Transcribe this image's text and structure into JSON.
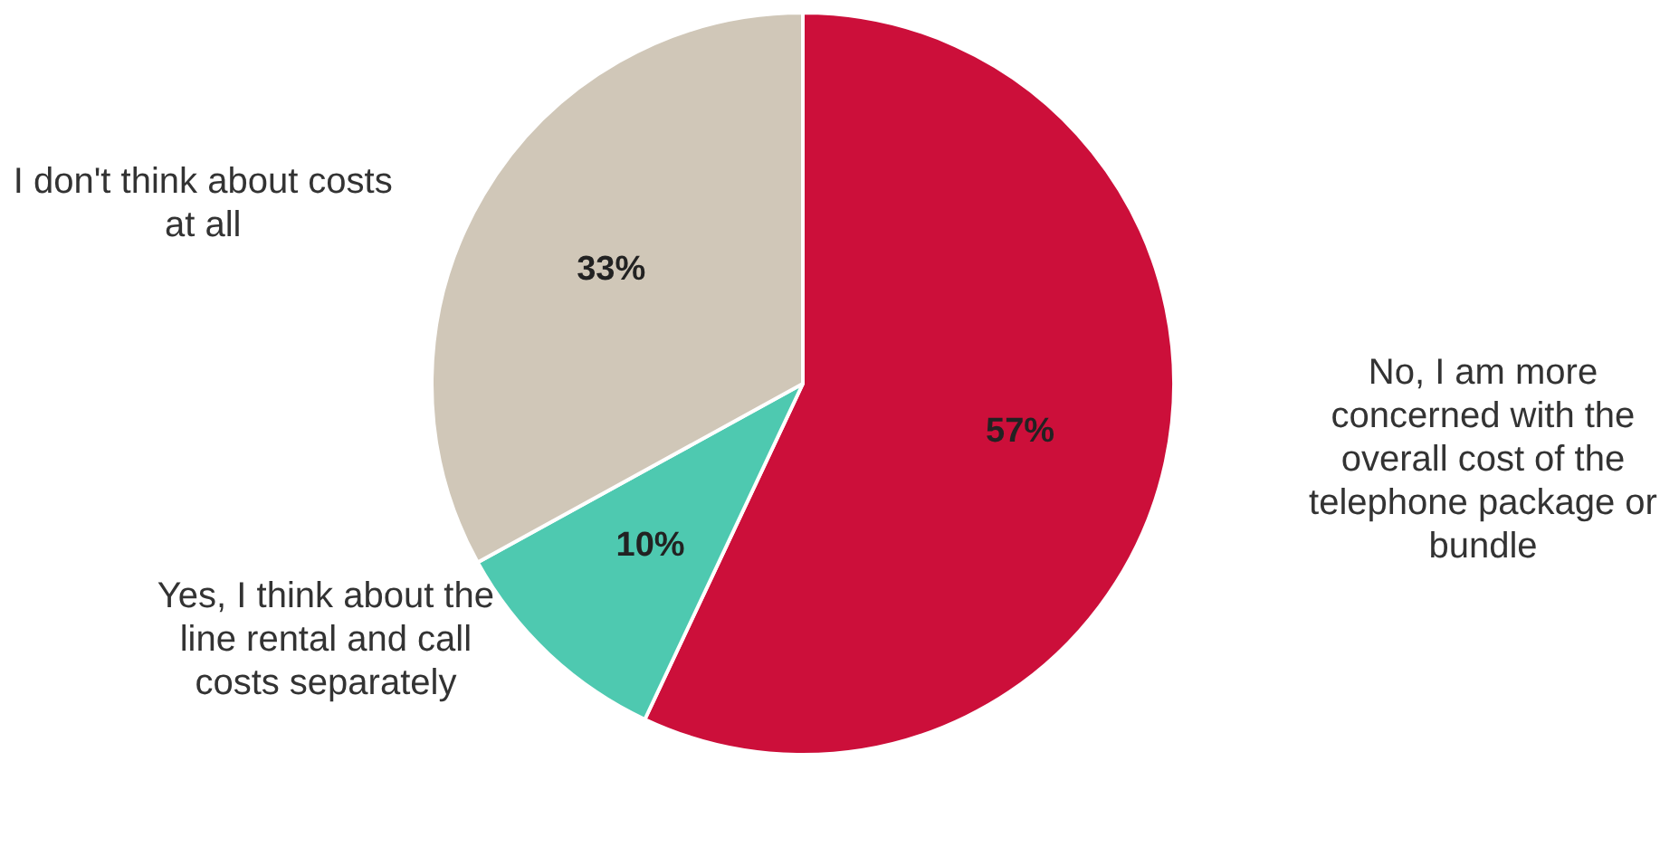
{
  "chart_data": {
    "type": "pie",
    "categories": [
      "No, I am more concerned with the overall cost of the telephone package or bundle",
      "Yes, I think about the line rental and call costs separately",
      "I don't think about costs at all"
    ],
    "values": [
      57,
      10,
      33
    ],
    "colors": [
      "#cc0f3a",
      "#4ec9b0",
      "#d0c7b8"
    ],
    "value_labels": [
      "57%",
      "10%",
      "33%"
    ],
    "legend": false
  }
}
